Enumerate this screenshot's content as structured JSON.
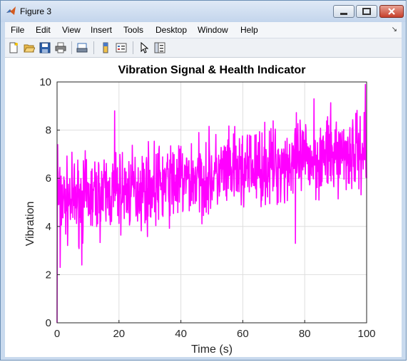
{
  "window": {
    "title": "Figure 3"
  },
  "menu": [
    "File",
    "Edit",
    "View",
    "Insert",
    "Tools",
    "Desktop",
    "Window",
    "Help"
  ],
  "toolbar": {
    "icons": [
      "new-figure-icon",
      "open-file-icon",
      "save-icon",
      "print-icon",
      "link-print-icon",
      "insert-colorbar-icon",
      "insert-legend-icon",
      "edit-plot-icon",
      "property-editor-icon"
    ]
  },
  "colors": {
    "line": "#ff00ff",
    "grid": "#dedede"
  },
  "chart_data": {
    "type": "line",
    "title": "Vibration Signal & Health Indicator",
    "xlabel": "Time (s)",
    "ylabel": "Vibration",
    "xlim": [
      0,
      100
    ],
    "ylim": [
      0,
      10
    ],
    "xticks": [
      0,
      20,
      40,
      60,
      80,
      100
    ],
    "yticks": [
      0,
      2,
      4,
      6,
      8,
      10
    ],
    "grid": true,
    "series": [
      {
        "sample_interval": 0.1,
        "trend": {
          "start": 5.0,
          "end": 7.2
        },
        "approx_range": [
          2.3,
          10.0
        ],
        "key_points": [
          [
            0,
            0
          ],
          [
            0.2,
            7.4
          ],
          [
            1,
            2.3
          ],
          [
            8,
            2.4
          ],
          [
            18.6,
            8.8
          ],
          [
            77,
            3.3
          ],
          [
            83,
            9.3
          ],
          [
            99.6,
            9.9
          ],
          [
            100,
            6.0
          ]
        ]
      }
    ]
  }
}
